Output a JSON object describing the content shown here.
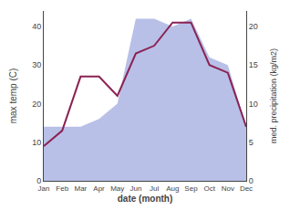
{
  "chart_data": {
    "type": "line",
    "xlabel": "date (month)",
    "ylabel": "max temp (C)",
    "y2label": "med. precipitation (kg/m2)",
    "categories": [
      "Jan",
      "Feb",
      "Mar",
      "Apr",
      "May",
      "Jun",
      "Jul",
      "Aug",
      "Sep",
      "Oct",
      "Nov",
      "Dec"
    ],
    "series": [
      {
        "type": "area",
        "axis": "y2",
        "color": "#b8c0e8",
        "values": [
          7,
          7,
          7,
          8,
          10,
          21,
          21,
          20,
          21,
          16,
          15,
          7
        ]
      },
      {
        "type": "line",
        "color": "#8B2252",
        "values": [
          9,
          13,
          27,
          27,
          22,
          33,
          35,
          41,
          41,
          30,
          28,
          14
        ]
      }
    ],
    "ylim": [
      0,
      44
    ],
    "yticks": [
      0,
      10,
      20,
      30,
      40
    ],
    "y2lim": [
      0,
      22
    ],
    "y2ticks": [
      0,
      5,
      10,
      15,
      20
    ],
    "grid": false
  }
}
